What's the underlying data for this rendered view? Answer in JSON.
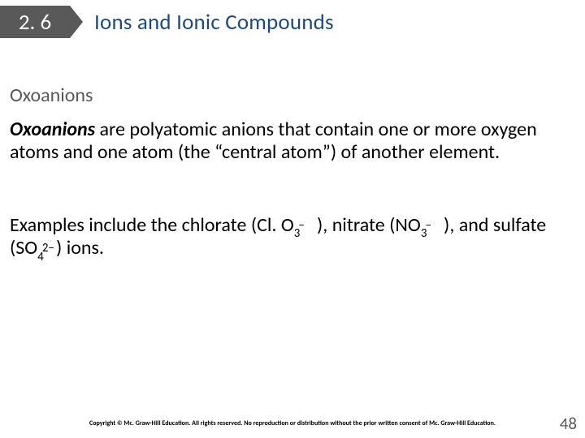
{
  "header": {
    "section_number": "2. 6",
    "chapter_title": "Ions and Ionic Compounds",
    "section_box_bg": "#595959",
    "section_box_fg": "#ffffff",
    "title_color": "#1f497d"
  },
  "subheading": {
    "text": "Oxoanions",
    "color": "#595959"
  },
  "paragraph1": {
    "lead_term": "Oxoanions",
    "rest": " are polyatomic anions that contain one or more oxygen atoms and one atom (the “central atom”) of another element."
  },
  "paragraph2": {
    "pre": "Examples include the chlorate (Cl. O",
    "chlorate_sub": "3",
    "chlorate_sup": "−",
    "mid1": " ), nitrate (NO",
    "nitrate_sub": "3",
    "nitrate_sup": "−",
    "mid2": " ), and sulfate (SO",
    "sulfate_sub": "4",
    "sulfate_sup": "2−",
    "tail": ") ions."
  },
  "footer": {
    "copyright": "Copyright © Mc. Graw-Hill Education. All rights reserved. No reproduction or distribution without the prior written consent of Mc. Graw-Hill Education.",
    "page_number": "48"
  },
  "colors": {
    "background": "#ffffff",
    "body_text": "#000000",
    "muted": "#595959"
  }
}
